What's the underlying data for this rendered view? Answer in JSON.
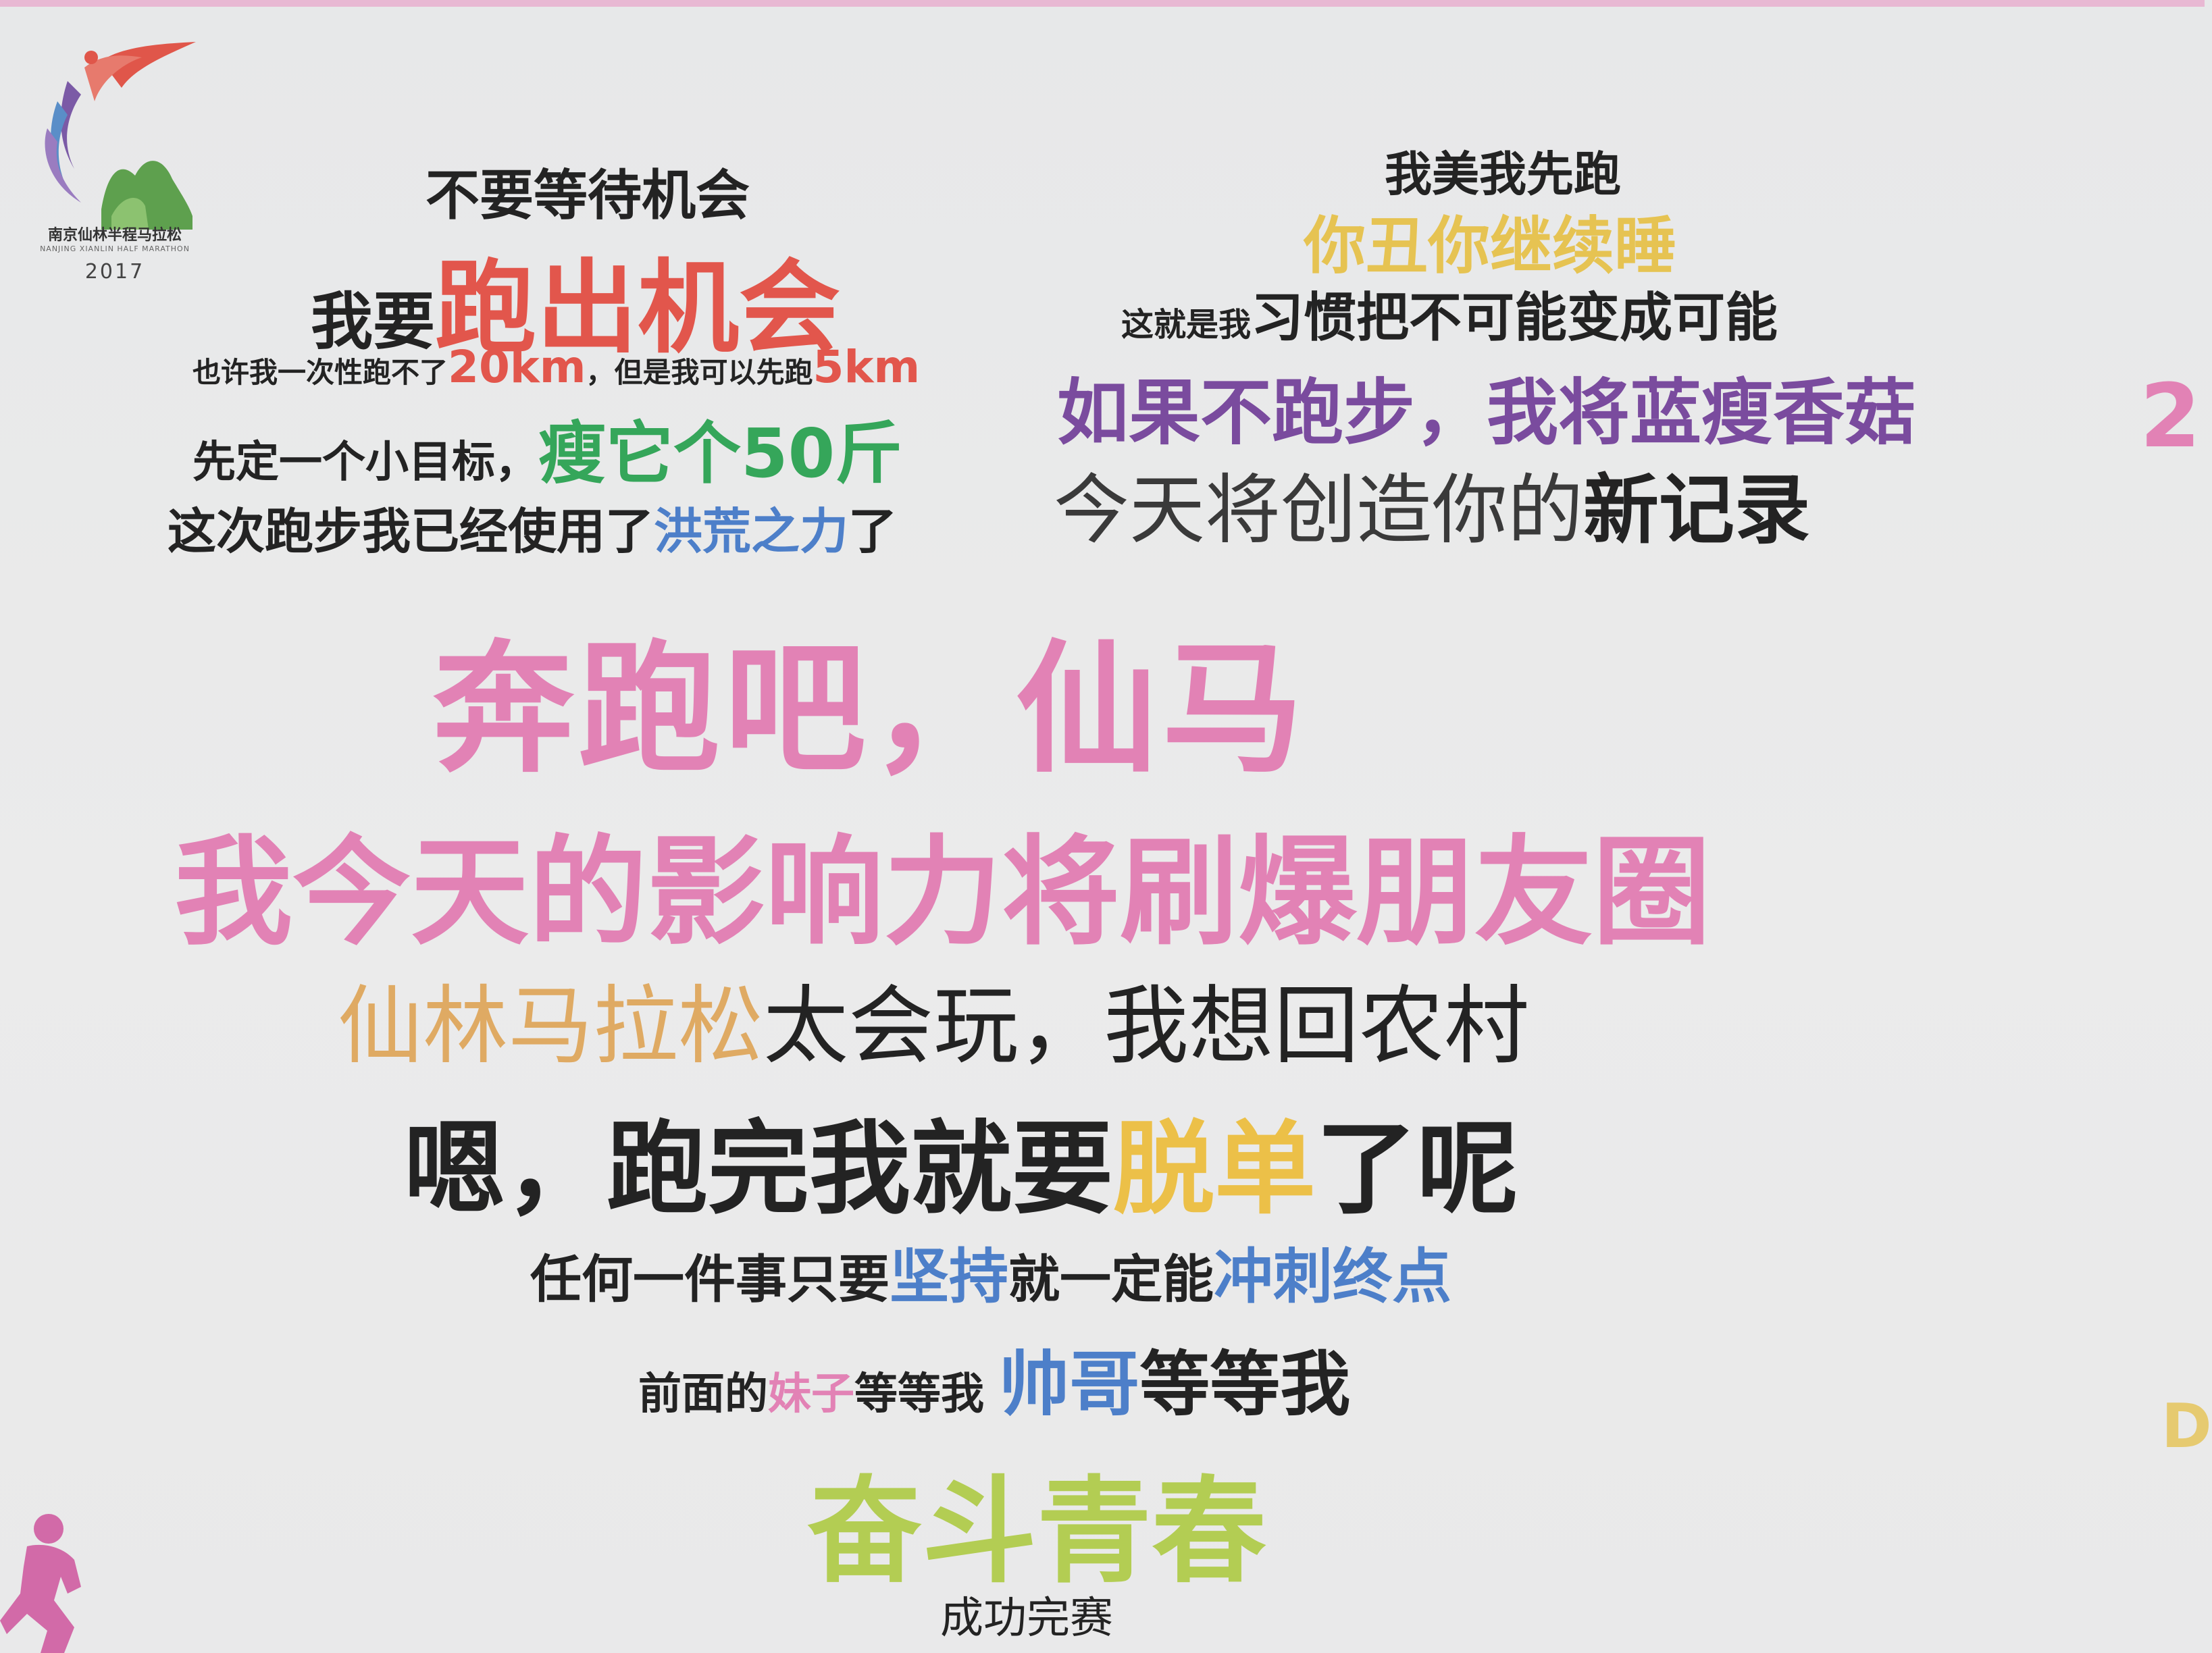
{
  "logo": {
    "name": "南京仙林半程马拉松",
    "name_en": "NANJING XIANLIN HALF MARATHON",
    "year": "2017",
    "colors": {
      "runner_red": "#e0564a",
      "runner_purple": "#7b5aa6",
      "runner_blue": "#5a8ec8",
      "mountain_green": "#5ea04e"
    }
  },
  "slogans": {
    "l1": "不要等待机会",
    "l2": {
      "a": "我要",
      "b": "跑出机会"
    },
    "l3": {
      "a": "也许我一次性跑不了",
      "b": "20km",
      "c": "，但是我可以先跑",
      "d": "5km"
    },
    "l4": {
      "a": "先定一个小目标，",
      "b": "瘦它个50斤"
    },
    "l5": {
      "a": "这次跑步我已经使用了",
      "b": "洪荒之力",
      "c": "了"
    },
    "r1": "我美我先跑",
    "r2": "你丑你继续睡",
    "r3": {
      "a": "这就是我",
      "b": "习惯把不可能变成可能"
    },
    "r4": "如果不跑步，我将蓝瘦香菇",
    "r5": {
      "a": "今天将创造你的",
      "b": "新记录"
    },
    "main1": "奔跑吧，仙马",
    "main2": "我今天的影响力将刷爆朋友圈",
    "m3": {
      "a": "仙林马拉松",
      "b": "太会玩，我想回农村"
    },
    "m4": {
      "a": "嗯，跑完我就要",
      "b": "脱单",
      "c": "了呢"
    },
    "m5": {
      "a": "任何一件事只要",
      "b": "坚持",
      "c": "就一定能",
      "d": "冲刺终点"
    },
    "m6": {
      "a": "前面的",
      "b": "妹子",
      "c": "等等我 ",
      "d": "帅哥",
      "e": "等等我"
    },
    "m7": "奋斗青春",
    "m8": "成功完赛"
  },
  "edge": {
    "right_top": "2",
    "right_bottom": "D"
  },
  "colors": {
    "red": "#e2564c",
    "green": "#35a65a",
    "blue": "#4d7fc9",
    "gold": "#e6c352",
    "purple": "#7a4b9e",
    "pink": "#e282b5",
    "ochre": "#dfaa63",
    "yellow": "#ecc048",
    "lime": "#b3cd53",
    "black": "#232323"
  }
}
